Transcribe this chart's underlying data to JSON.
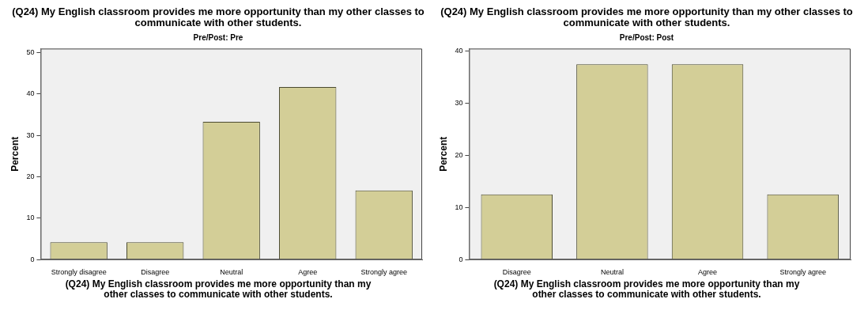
{
  "chart_data": [
    {
      "type": "bar",
      "title": "(Q24) My English classroom provides me more opportunity than my other classes to communicate with other students.",
      "subtitle": "Pre/Post: Pre",
      "xlabel": "(Q24) My English classroom provides me more opportunity than my other classes to communicate with other students.",
      "ylabel": "Percent",
      "categories": [
        "Strongly disagree",
        "Disagree",
        "Neutral",
        "Agree",
        "Strongly agree"
      ],
      "values": [
        4.2,
        4.2,
        33.3,
        41.7,
        16.7
      ],
      "color": "#d3ce97",
      "ylim": [
        0,
        51
      ],
      "yticks": [
        0,
        10,
        20,
        30,
        40,
        50
      ],
      "grid": false,
      "legend": false
    },
    {
      "type": "bar",
      "title": "(Q24) My English classroom provides me more opportunity than my other classes to communicate with other students.",
      "subtitle": "Pre/Post: Post",
      "xlabel": "(Q24) My English classroom provides me more opportunity than my other classes to communicate with other students.",
      "ylabel": "Percent",
      "categories": [
        "Disagree",
        "Neutral",
        "Agree",
        "Strongly agree"
      ],
      "values": [
        12.5,
        37.5,
        37.5,
        12.5
      ],
      "color": "#d3ce97",
      "ylim": [
        0,
        40.5
      ],
      "yticks": [
        0,
        10,
        20,
        30,
        40
      ],
      "grid": false,
      "legend": false
    }
  ]
}
